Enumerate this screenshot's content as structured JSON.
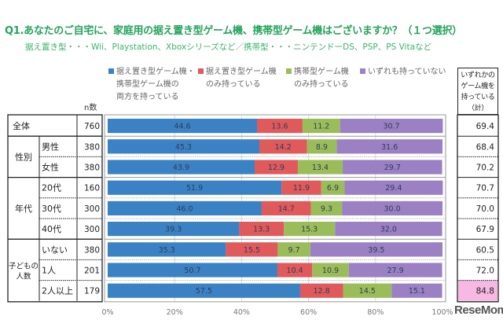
{
  "title": "Q1.あなたのご自宅に、家庭用の据え置き型ゲーム機、携帯型ゲーム機はございますか？（１つ選択）",
  "subtitle": "据え置き型・・・Wii、Playstation、Xboxシリーズなど／携帯型・・・ニンテンドーDS、PSP、PS Vitaなど",
  "n_label": "n数",
  "total_header": [
    "いずれかの",
    "ゲーム機を",
    "持っている",
    "（計）"
  ],
  "watermark": "ReseMom",
  "chart_data": {
    "type": "bar",
    "orientation": "horizontal-stacked-100",
    "series": [
      {
        "name": "据え置き型ゲーム機・携帯型ゲーム機の両方を持っている",
        "legend_lines": [
          "据え置き型ゲーム機・",
          "携帯型ゲーム機の",
          "両方を持っている"
        ],
        "color": "#3b82c4",
        "values": [
          44.6,
          45.3,
          43.9,
          51.9,
          46.0,
          39.3,
          35.3,
          50.7,
          57.5
        ]
      },
      {
        "name": "据え置き型ゲーム機のみ持っている",
        "legend_lines": [
          "据え置き型ゲーム機",
          "のみ持っている"
        ],
        "color": "#e05a5c",
        "values": [
          13.6,
          14.2,
          12.9,
          11.9,
          14.7,
          13.3,
          15.5,
          10.4,
          12.8
        ]
      },
      {
        "name": "携帯型ゲーム機のみ持っている",
        "legend_lines": [
          "携帯型ゲーム機",
          "のみ持っている"
        ],
        "color": "#9bbd59",
        "values": [
          11.2,
          8.9,
          13.4,
          6.9,
          9.3,
          15.3,
          9.7,
          10.9,
          14.5
        ]
      },
      {
        "name": "いずれも持っていない",
        "legend_lines": [
          "いずれも持っていない"
        ],
        "color": "#9b80c4",
        "values": [
          30.7,
          31.6,
          29.7,
          29.4,
          30.0,
          32.0,
          39.5,
          27.9,
          15.1
        ]
      }
    ],
    "groups": [
      {
        "label": "全体",
        "rows": [
          {
            "label": "",
            "n": "760",
            "total": "69.4"
          }
        ]
      },
      {
        "label": "性別",
        "rows": [
          {
            "label": "男性",
            "n": "380",
            "total": "68.4"
          },
          {
            "label": "女性",
            "n": "380",
            "total": "70.2"
          }
        ]
      },
      {
        "label": "年代",
        "rows": [
          {
            "label": "20代",
            "n": "160",
            "total": "70.7"
          },
          {
            "label": "30代",
            "n": "300",
            "total": "70.0"
          },
          {
            "label": "40代",
            "n": "300",
            "total": "67.9"
          }
        ]
      },
      {
        "label": "子どもの人数",
        "label_lines": [
          "子どもの",
          "人数"
        ],
        "rows": [
          {
            "label": "いない",
            "n": "380",
            "total": "60.5"
          },
          {
            "label": "1人",
            "n": "201",
            "total": "72.0"
          },
          {
            "label": "2人以上",
            "n": "179",
            "total": "84.8",
            "highlight": "#f7b8e3"
          }
        ]
      }
    ],
    "xticks": [
      "0%",
      "20%",
      "40%",
      "60%",
      "80%",
      "100%"
    ],
    "xlim": [
      0,
      100
    ],
    "grid": true,
    "legend": "top"
  }
}
